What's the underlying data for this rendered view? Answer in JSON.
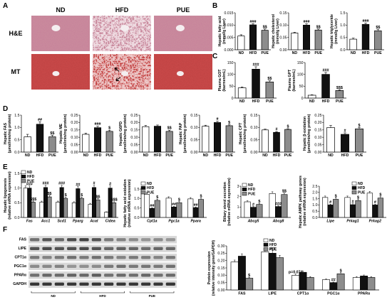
{
  "colors": {
    "ND": "#ffffff",
    "HFD": "#111111",
    "PUE": "#8c8c8c"
  },
  "panel_A": {
    "label": "A",
    "columns": [
      "ND",
      "HFD",
      "PUE"
    ],
    "rows": [
      {
        "label": "H&E",
        "color": "#c98a9c",
        "dark": "#9a4d67"
      },
      {
        "label": "MT",
        "color": "#c84848",
        "dark": "#8c1e1e"
      }
    ]
  },
  "groups3": [
    "ND",
    "HFD",
    "PUE"
  ],
  "chart_data": [
    {
      "id": "B1",
      "panel": "B",
      "type": "bar",
      "ylabel": "Hepatic fatty acid\n(mmol/g Liver)",
      "ylim": [
        0,
        0.015
      ],
      "yticks": [
        "0.000",
        "0.005",
        "0.010",
        "0.015"
      ],
      "categories": [
        "ND",
        "HFD",
        "PUE"
      ],
      "values": [
        0.0056,
        0.0101,
        0.0079
      ],
      "errors": [
        0.0005,
        0.0005,
        0.0005
      ],
      "sig": [
        "",
        "###",
        "$$"
      ]
    },
    {
      "id": "B2",
      "panel": "B",
      "type": "bar",
      "ylabel": "Hepatic cholesterol\n(mmol/g Liver)",
      "ylim": [
        0,
        0.15
      ],
      "yticks": [
        "0.00",
        "0.05",
        "0.10",
        "0.15"
      ],
      "categories": [
        "ND",
        "HFD",
        "PUE"
      ],
      "values": [
        0.068,
        0.1,
        0.08
      ],
      "errors": [
        0.003,
        0.005,
        0.004
      ],
      "sig": [
        "",
        "###",
        "$$"
      ]
    },
    {
      "id": "B3",
      "panel": "B",
      "type": "bar",
      "ylabel": "Hepatic triglyceride\n(mmol/g Liver)",
      "ylim": [
        0,
        1.5
      ],
      "yticks": [
        "0.0",
        "0.5",
        "1.0",
        "1.5"
      ],
      "categories": [
        "ND",
        "HFD",
        "PUE"
      ],
      "values": [
        0.43,
        1.03,
        0.77
      ],
      "errors": [
        0.04,
        0.05,
        0.05
      ],
      "sig": [
        "",
        "###",
        "$$"
      ]
    },
    {
      "id": "C1",
      "panel": "C",
      "type": "bar",
      "ylabel": "Plasma GOT\n(karmen/mL)",
      "ylim": [
        0,
        150
      ],
      "yticks": [
        "0",
        "50",
        "100",
        "150"
      ],
      "categories": [
        "ND",
        "HFD",
        "PUE"
      ],
      "values": [
        43,
        122,
        68
      ],
      "errors": [
        4,
        10,
        5
      ],
      "sig": [
        "",
        "###",
        "$$"
      ]
    },
    {
      "id": "C2",
      "panel": "C",
      "type": "bar",
      "ylabel": "Plasma GPT\n(karmen/mL)",
      "ylim": [
        0,
        150
      ],
      "yticks": [
        "0",
        "50",
        "100",
        "150"
      ],
      "categories": [
        "ND",
        "HFD",
        "PUE"
      ],
      "values": [
        12,
        100,
        32
      ],
      "errors": [
        2,
        8,
        3
      ],
      "sig": [
        "",
        "###",
        "$$$"
      ]
    },
    {
      "id": "D1",
      "panel": "D",
      "type": "bar",
      "ylabel": "Hepatic FAS\n(μmol/min/mg protein)",
      "ylim": [
        0,
        1.5
      ],
      "yticks": [
        "0.0",
        "0.5",
        "1.0",
        "1.5"
      ],
      "categories": [
        "ND",
        "HFD",
        "PUE"
      ],
      "values": [
        0.62,
        1.13,
        0.62
      ],
      "errors": [
        0.1,
        0.1,
        0.06
      ],
      "sig": [
        "",
        "##",
        "$$"
      ]
    },
    {
      "id": "D2",
      "panel": "D",
      "type": "bar",
      "ylabel": "Hepatic ME\n(μmol/min/mg protein)",
      "ylim": [
        0,
        0.25
      ],
      "yticks": [
        "0.00",
        "0.05",
        "0.10",
        "0.15",
        "0.20",
        "0.25"
      ],
      "categories": [
        "ND",
        "HFD",
        "PUE"
      ],
      "values": [
        0.12,
        0.165,
        0.14
      ],
      "errors": [
        0.008,
        0.01,
        0.008
      ],
      "sig": [
        "",
        "###",
        "$"
      ]
    },
    {
      "id": "D3",
      "panel": "D",
      "type": "bar",
      "ylabel": "Hepatic G6PD\n(μmol/min/mg protein)",
      "ylim": [
        0,
        0.25
      ],
      "yticks": [
        "0.00",
        "0.05",
        "0.10",
        "0.15",
        "0.20",
        "0.25"
      ],
      "categories": [
        "ND",
        "HFD",
        "PUE"
      ],
      "values": [
        0.172,
        0.175,
        0.14
      ],
      "errors": [
        0.008,
        0.008,
        0.008
      ],
      "sig": [
        "",
        "",
        "$$"
      ]
    },
    {
      "id": "D4",
      "panel": "D",
      "type": "bar",
      "ylabel": "Hepatic PAP\n(μmol/min/mg protein)",
      "ylim": [
        0,
        0.15
      ],
      "yticks": [
        "0.00",
        "0.05",
        "0.10",
        "0.15"
      ],
      "categories": [
        "ND",
        "HFD",
        "PUE"
      ],
      "values": [
        0.105,
        0.12,
        0.107
      ],
      "errors": [
        0.004,
        0.005,
        0.004
      ],
      "sig": [
        "",
        "#",
        "$"
      ]
    },
    {
      "id": "D5",
      "panel": "D",
      "type": "bar",
      "ylabel": "Hepatic CPT\n(μmol/min/mg protein)",
      "ylim": [
        0,
        0.15
      ],
      "yticks": [
        "0.00",
        "0.05",
        "0.10",
        "0.15"
      ],
      "categories": [
        "ND",
        "HFD",
        "PUE"
      ],
      "values": [
        0.09,
        0.08,
        0.092
      ],
      "errors": [
        0.003,
        0.003,
        0.003
      ],
      "sig": [
        "",
        "#",
        "$"
      ]
    },
    {
      "id": "D6",
      "panel": "D",
      "type": "bar",
      "ylabel": "Hepatic β-oxidation\n(μmol/min/mg protein)",
      "ylim": [
        0,
        0.25
      ],
      "yticks": [
        "0.00",
        "0.05",
        "0.10",
        "0.15",
        "0.20",
        "0.25"
      ],
      "categories": [
        "ND",
        "HFD",
        "PUE"
      ],
      "values": [
        0.165,
        0.12,
        0.157
      ],
      "errors": [
        0.015,
        0.01,
        0.01
      ],
      "sig": [
        "",
        "#",
        "$"
      ]
    },
    {
      "id": "E1",
      "panel": "E",
      "type": "bar",
      "ylabel": "Hepatic lipogenesis\n(relative mRNA expression)",
      "ylim": [
        0,
        1.5
      ],
      "yticks": [
        "0.0",
        "0.5",
        "1.0",
        "1.5"
      ],
      "categories": [
        "Fas",
        "Acc1",
        "Scd1",
        "Pparg",
        "Acat",
        "Cidea"
      ],
      "series": [
        {
          "name": "ND",
          "values": [
            1.0,
            0.52,
            0.52,
            0.5,
            0.45,
            0.18
          ]
        },
        {
          "name": "HFD",
          "values": [
            1.0,
            1.02,
            1.02,
            0.98,
            1.02,
            1.0
          ]
        },
        {
          "name": "PUE",
          "values": [
            0.52,
            0.7,
            0.65,
            0.65,
            0.6,
            0.5
          ]
        }
      ],
      "sig": [
        [
          "",
          "###",
          "$$$"
        ],
        [
          "",
          "###",
          "$$"
        ],
        [
          "",
          "###",
          "$"
        ],
        [
          "",
          "##",
          "$"
        ],
        [
          "",
          "#",
          "$$"
        ],
        [
          "",
          "#",
          "$$$"
        ]
      ]
    },
    {
      "id": "E2",
      "panel": "E",
      "type": "bar",
      "ylabel": "Hepatic fatty acid oxidation\n(relative mRNA expression)",
      "ylim": [
        0,
        1.5
      ],
      "yticks": [
        "0.0",
        "0.5",
        "1.0",
        "1.5"
      ],
      "categories": [
        "Cpt1a",
        "Pgc1a",
        "Ppara"
      ],
      "series": [
        {
          "name": "ND",
          "values": [
            1.22,
            1.02,
            0.98
          ]
        },
        {
          "name": "HFD",
          "values": [
            0.48,
            0.55,
            0.52
          ]
        },
        {
          "name": "PUE",
          "values": [
            0.9,
            0.78,
            0.95
          ]
        }
      ],
      "sig": [
        [
          "",
          "##",
          "$"
        ],
        [
          "",
          "##",
          "$"
        ],
        [
          "",
          "##",
          "$"
        ]
      ]
    },
    {
      "id": "E3",
      "panel": "E",
      "type": "bar",
      "ylabel": "Biliary sterol excretion\n(relative mRNA expression)",
      "ylim": [
        0,
        3
      ],
      "yticks": [
        "0",
        "1",
        "2",
        "3"
      ],
      "categories": [
        "Abcg5",
        "Abcg8"
      ],
      "series": [
        {
          "name": "ND",
          "values": [
            1.5,
            2.3
          ]
        },
        {
          "name": "HFD",
          "values": [
            0.98,
            1.05
          ]
        },
        {
          "name": "PUE",
          "values": [
            1.25,
            2.2
          ]
        }
      ],
      "sig": [
        [
          "",
          "#",
          "$"
        ],
        [
          "",
          "###",
          "$$"
        ]
      ]
    },
    {
      "id": "E4",
      "panel": "E",
      "type": "bar",
      "ylabel": "Hepatic AMPK pathway genes\n(relative mRNA expression)",
      "ylim": [
        0,
        2.5
      ],
      "yticks": [
        "0.0",
        "0.5",
        "1.0",
        "1.5",
        "2.0",
        "2.5"
      ],
      "categories": [
        "Lipe",
        "Prkag1",
        "Prkag2"
      ],
      "series": [
        {
          "name": "ND",
          "values": [
            1.6,
            1.6,
            1.95
          ]
        },
        {
          "name": "HFD",
          "values": [
            1.0,
            1.02,
            1.0
          ]
        },
        {
          "name": "PUE",
          "values": [
            1.45,
            1.35,
            1.55
          ]
        }
      ],
      "sig": [
        [
          "",
          "#",
          "$"
        ],
        [
          "",
          "#",
          "$"
        ],
        [
          "",
          "#",
          "$"
        ]
      ]
    },
    {
      "id": "F",
      "panel": "F",
      "type": "bar",
      "ylabel": "Protein expression\n(relative intensity gene/GAPDH)",
      "ylim": [
        0,
        0.3
      ],
      "yticks": [
        "0.00",
        "0.05",
        "0.10",
        "0.15",
        "0.20",
        "0.25",
        "0.30"
      ],
      "categories": [
        "FAS",
        "LIPE",
        "CPT1α",
        "PGC1α",
        "PPARα"
      ],
      "series": [
        {
          "name": "ND",
          "values": [
            0.19,
            0.26,
            0.1,
            0.07,
            0.085
          ]
        },
        {
          "name": "HFD",
          "values": [
            0.23,
            0.25,
            0.12,
            0.05,
            0.095
          ]
        },
        {
          "name": "PUE",
          "values": [
            0.08,
            0.22,
            0.085,
            0.11,
            0.085
          ]
        }
      ],
      "sig": [
        [
          "",
          "",
          "$"
        ],
        [
          "",
          "###",
          ""
        ],
        [
          "p=0.074",
          "",
          ""
        ],
        [
          "",
          "##",
          "$"
        ],
        [
          "",
          "",
          ""
        ]
      ]
    }
  ],
  "panel_B_label": "B",
  "panel_C_label": "C",
  "panel_D_label": "D",
  "panel_E_label": "E",
  "panel_F_label": "F",
  "blot": {
    "rows": [
      "FAS",
      "LIPE",
      "CPT1α",
      "PGC1α",
      "PPARα",
      "GAPDH"
    ],
    "groups": [
      "ND",
      "HFD",
      "PUE"
    ]
  },
  "legend_groups": [
    "ND",
    "HFD",
    "PUE"
  ]
}
